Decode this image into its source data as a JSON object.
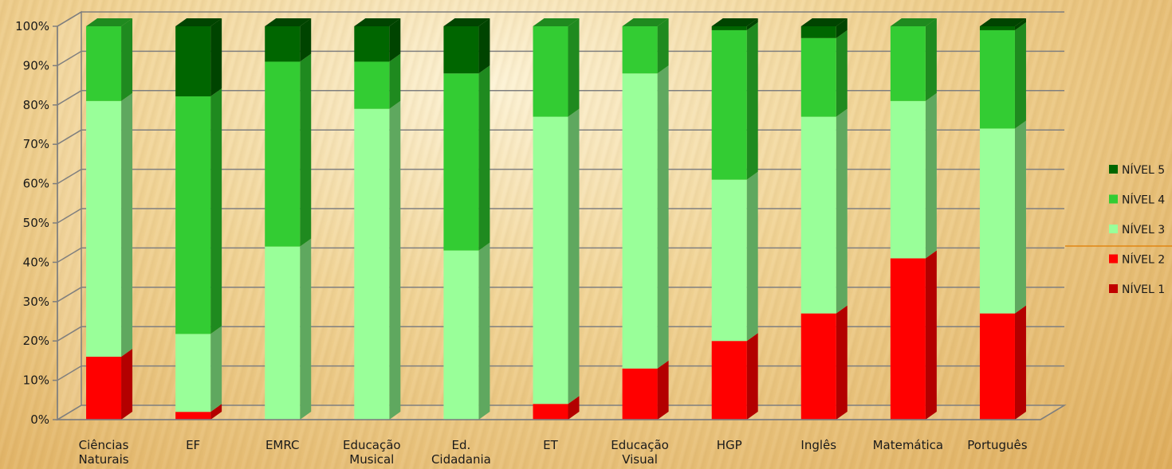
{
  "chart_data": {
    "type": "bar",
    "stacked": true,
    "percent_stacked": true,
    "three_d": true,
    "categories": [
      [
        "Ciências",
        "Naturais"
      ],
      [
        "EF"
      ],
      [
        "EMRC"
      ],
      [
        "Educação",
        "Musical"
      ],
      [
        "Ed.",
        "Cidadania"
      ],
      [
        "ET"
      ],
      [
        "Educação",
        "Visual"
      ],
      [
        "HGP"
      ],
      [
        "Inglês"
      ],
      [
        "Matemática"
      ],
      [
        "Português"
      ]
    ],
    "series": [
      {
        "name": "NÍVEL 1",
        "color": "#c00000",
        "side": "#8b0000",
        "values": [
          0,
          0,
          0,
          0,
          0,
          0,
          0,
          0,
          0,
          0,
          0
        ]
      },
      {
        "name": "NÍVEL 2",
        "color": "#ff0000",
        "side": "#b30000",
        "values": [
          16,
          2,
          0,
          0,
          0,
          4,
          13,
          20,
          27,
          41,
          27
        ]
      },
      {
        "name": "NÍVEL 3",
        "color": "#99ff99",
        "side": "#5fa85f",
        "values": [
          65,
          20,
          44,
          79,
          43,
          73,
          75,
          41,
          50,
          40,
          47
        ]
      },
      {
        "name": "NÍVEL 4",
        "color": "#33cc33",
        "side": "#1f8a1f",
        "values": [
          19,
          61,
          47,
          12,
          45,
          23,
          12,
          38,
          20,
          19,
          25
        ]
      },
      {
        "name": "NÍVEL 5",
        "color": "#006600",
        "side": "#004400",
        "values": [
          0,
          18,
          9,
          9,
          12,
          0,
          0,
          1,
          3,
          0,
          1
        ]
      }
    ],
    "y_ticks": [
      "0%",
      "10%",
      "20%",
      "30%",
      "40%",
      "50%",
      "60%",
      "70%",
      "80%",
      "90%",
      "100%"
    ],
    "ylim": [
      0,
      100
    ],
    "grid": true,
    "legend_position": "right",
    "legend_order": [
      "NÍVEL 5",
      "NÍVEL 4",
      "NÍVEL 3",
      "NÍVEL 2",
      "NÍVEL 1"
    ]
  }
}
